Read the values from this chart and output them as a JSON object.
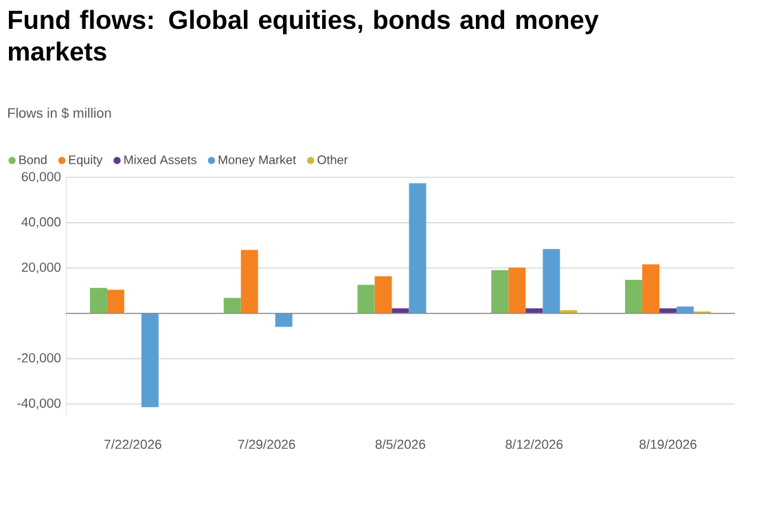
{
  "chart_data": {
    "type": "bar",
    "title": "Fund flows: Global equities, bonds and money markets",
    "subtitle": "Flows in $ million",
    "categories": [
      "7/22/2026",
      "7/29/2026",
      "8/5/2026",
      "8/12/2026",
      "8/19/2026"
    ],
    "series": [
      {
        "name": "Bond",
        "color": "#7cbb64",
        "values": [
          11200,
          6800,
          12600,
          19000,
          14800
        ]
      },
      {
        "name": "Equity",
        "color": "#f58220",
        "values": [
          10400,
          28000,
          16400,
          20200,
          21600
        ]
      },
      {
        "name": "Mixed Assets",
        "color": "#5c3b8e",
        "values": [
          null,
          null,
          2200,
          2200,
          2200
        ]
      },
      {
        "name": "Money Market",
        "color": "#5a9fd4",
        "values": [
          -41400,
          -6000,
          57400,
          28400,
          3000
        ]
      },
      {
        "name": "Other",
        "color": "#d4b83a",
        "values": [
          null,
          null,
          null,
          1400,
          800
        ]
      }
    ],
    "ylim": [
      -45000,
      60000
    ],
    "yticks": [
      {
        "value": -40000,
        "label": "-40,000"
      },
      {
        "value": -20000,
        "label": "-20,000"
      },
      {
        "value": 0,
        "label": null
      },
      {
        "value": 20000,
        "label": "20,000"
      },
      {
        "value": 40000,
        "label": "40,000"
      },
      {
        "value": 60000,
        "label": "60,000"
      }
    ],
    "grid": "y",
    "legend": "top left"
  }
}
